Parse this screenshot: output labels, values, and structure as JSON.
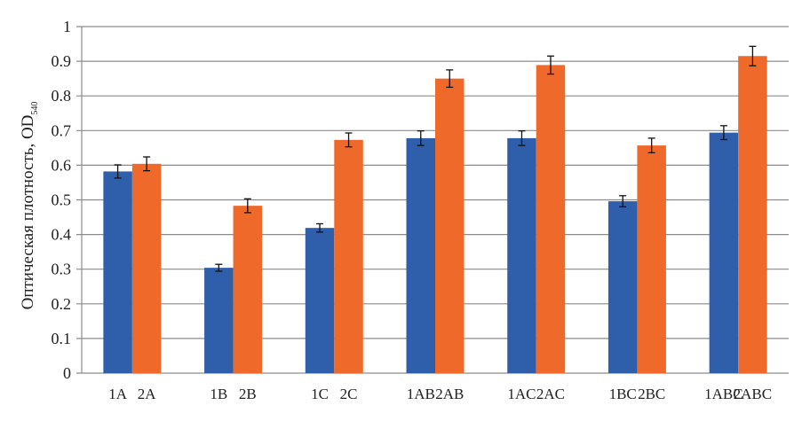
{
  "chart_data": {
    "type": "bar",
    "title": "",
    "xlabel": "",
    "ylabel": "Оптическая плотность, OD",
    "ylabel_sub": "540",
    "ylim": [
      0,
      1
    ],
    "yticks": [
      "0",
      "0.1",
      "0.2",
      "0.3",
      "0.4",
      "0.5",
      "0.6",
      "0.7",
      "0.8",
      "0.9",
      "1"
    ],
    "grid": true,
    "legend": "none",
    "groups": [
      "A",
      "B",
      "C",
      "AB",
      "AC",
      "BC",
      "ABC"
    ],
    "series": [
      {
        "name": "1",
        "color": "#2f5fab",
        "labels": [
          "1A",
          "1B",
          "1C",
          "1AB",
          "1AC",
          "1BC",
          "1ABC"
        ],
        "values": [
          0.582,
          0.304,
          0.419,
          0.678,
          0.678,
          0.496,
          0.694
        ],
        "errors": [
          0.019,
          0.01,
          0.012,
          0.021,
          0.021,
          0.016,
          0.02
        ]
      },
      {
        "name": "2",
        "color": "#ef6a2a",
        "labels": [
          "2A",
          "2B",
          "2C",
          "2AB",
          "2AC",
          "2BC",
          "2ABC"
        ],
        "values": [
          0.604,
          0.483,
          0.673,
          0.85,
          0.889,
          0.657,
          0.915
        ],
        "errors": [
          0.02,
          0.02,
          0.02,
          0.025,
          0.026,
          0.021,
          0.028
        ]
      }
    ]
  }
}
